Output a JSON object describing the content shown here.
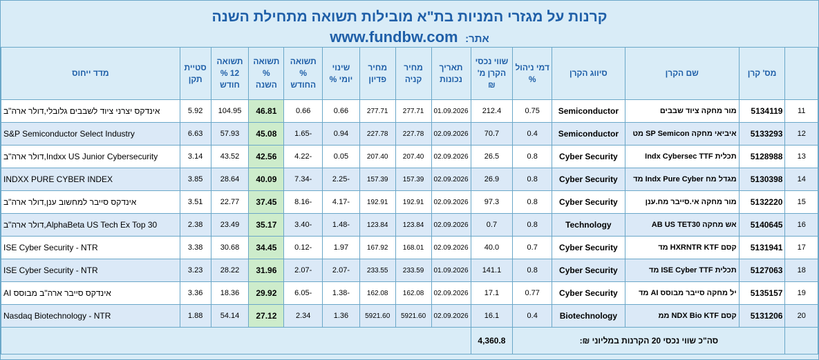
{
  "header": {
    "title": "קרנות על מגזרי המניות בת\"א מובילות תשואה מתחילת השנה",
    "site_label": "אתר:",
    "site_url": "www.fundbw.com"
  },
  "columns": {
    "num": "",
    "id": "מס' קרן",
    "name": "שם הקרן",
    "sector": "סיווג הקרן",
    "fee": "דמי ניהול %",
    "assets": "שווי נכסי הקרן מ' ₪",
    "date": "תאריך נכונות",
    "buy": "מחיר קניה",
    "sell": "מחיר פדיון",
    "daily": "שינוי יומי %",
    "month": "תשואה % החודש",
    "ytd": "תשואה % השנה",
    "y12": "תשואה 12 % חודש",
    "std": "סטיית תקן",
    "index": "מדד ייחוס"
  },
  "rows": [
    {
      "num": "11",
      "id": "5134119",
      "name": "מור מחקה ציוד שבבים",
      "sector": "Semiconductor",
      "fee": "0.75",
      "assets": "212.4",
      "date": "01.09.2026",
      "buy": "277.71",
      "sell": "277.71",
      "daily": "0.66",
      "month": "0.66",
      "ytd": "46.81",
      "y12": "104.95",
      "std": "5.92",
      "index": "אינדקס יצרני ציוד לשבבים גלובלי,דולר ארה\"ב"
    },
    {
      "num": "12",
      "id": "5133293",
      "name": "איביאי מחקה SP Semicon מט",
      "sector": "Semiconductor",
      "fee": "0.4",
      "assets": "70.7",
      "date": "02.09.2026",
      "buy": "227.78",
      "sell": "227.78",
      "daily": "0.94",
      "month": "-1.65",
      "ytd": "45.08",
      "y12": "57.93",
      "std": "6.63",
      "index": "S&P Semiconductor Select Industry"
    },
    {
      "num": "13",
      "id": "5128988",
      "name": "תכלית Indx Cybersec TTF",
      "sector": "Cyber Security",
      "fee": "0.8",
      "assets": "26.5",
      "date": "02.09.2026",
      "buy": "207.40",
      "sell": "207.40",
      "daily": "0.05",
      "month": "-4.22",
      "ytd": "42.56",
      "y12": "43.52",
      "std": "3.14",
      "index": "Indxx US Junior Cybersecurity,דולר ארה\"ב"
    },
    {
      "num": "14",
      "id": "5130398",
      "name": "מגדל מח Indx Pure Cyber מד",
      "sector": "Cyber Security",
      "fee": "0.8",
      "assets": "26.9",
      "date": "02.09.2026",
      "buy": "157.39",
      "sell": "157.39",
      "daily": "-2.25",
      "month": "-7.34",
      "ytd": "40.09",
      "y12": "28.64",
      "std": "3.85",
      "index": "INDXX PURE CYBER INDEX"
    },
    {
      "num": "15",
      "id": "5132220",
      "name": "מור מחקה אי.סייבר מח.ענן",
      "sector": "Cyber Security",
      "fee": "0.8",
      "assets": "97.3",
      "date": "02.09.2026",
      "buy": "192.91",
      "sell": "192.91",
      "daily": "-4.17",
      "month": "-8.16",
      "ytd": "37.45",
      "y12": "22.77",
      "std": "3.51",
      "index": "אינדקס סייבר למחשוב ענן,דולר ארה\"ב"
    },
    {
      "num": "16",
      "id": "5140645",
      "name": "אש מחקה AB US TET30",
      "sector": "Technology",
      "fee": "0.8",
      "assets": "0.7",
      "date": "02.09.2026",
      "buy": "123.84",
      "sell": "123.84",
      "daily": "-1.48",
      "month": "-3.40",
      "ytd": "35.17",
      "y12": "23.49",
      "std": "2.38",
      "index": "AlphaBeta US Tech Ex Top 30,דולר ארה\"ב"
    },
    {
      "num": "17",
      "id": "5131941",
      "name": "קסם HXRNTR KTF מד",
      "sector": "Cyber Security",
      "fee": "0.7",
      "assets": "40.0",
      "date": "02.09.2026",
      "buy": "168.01",
      "sell": "167.92",
      "daily": "1.97",
      "month": "-0.12",
      "ytd": "34.45",
      "y12": "30.68",
      "std": "3.38",
      "index": "ISE Cyber Security - NTR"
    },
    {
      "num": "18",
      "id": "5127063",
      "name": "תכלית ISE Cyber TTF מד",
      "sector": "Cyber Security",
      "fee": "0.8",
      "assets": "141.1",
      "date": "01.09.2026",
      "buy": "233.59",
      "sell": "233.55",
      "daily": "-2.07",
      "month": "-2.07",
      "ytd": "31.96",
      "y12": "28.22",
      "std": "3.23",
      "index": "ISE Cyber Security - NTR"
    },
    {
      "num": "19",
      "id": "5135157",
      "name": "יל מחקה סייבר מבוסס AI מד",
      "sector": "Cyber Security",
      "fee": "0.77",
      "assets": "17.1",
      "date": "02.09.2026",
      "buy": "162.08",
      "sell": "162.08",
      "daily": "-1.38",
      "month": "-6.05",
      "ytd": "29.92",
      "y12": "18.36",
      "std": "3.36",
      "index": "אינדקס סייבר ארה\"ב מבוסס AI"
    },
    {
      "num": "20",
      "id": "5131206",
      "name": "קסם NDX Bio KTF ממ",
      "sector": "Biotechnology",
      "fee": "0.4",
      "assets": "16.1",
      "date": "02.09.2026",
      "buy": "5921.60",
      "sell": "5921.60",
      "daily": "1.36",
      "month": "2.34",
      "ytd": "27.12",
      "y12": "54.14",
      "std": "1.88",
      "index": "Nasdaq Biotechnology - NTR"
    }
  ],
  "total": {
    "label": "סה\"כ שווי נכסי 20 הקרנות במליוני ₪:",
    "value": "4,360.8"
  }
}
